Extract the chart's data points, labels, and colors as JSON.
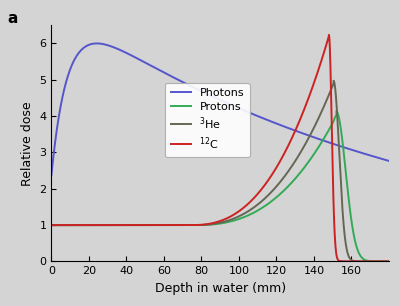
{
  "title_label": "a",
  "xlabel": "Depth in water (mm)",
  "ylabel": "Relative dose",
  "xlim": [
    0,
    180
  ],
  "ylim": [
    0,
    6.5
  ],
  "yticks": [
    0,
    1,
    2,
    3,
    4,
    5,
    6
  ],
  "xticks": [
    0,
    20,
    40,
    60,
    80,
    100,
    120,
    140,
    160
  ],
  "background_color": "#d4d4d4",
  "photon_color": "#5555cc",
  "proton_color": "#33aa55",
  "he_color": "#666655",
  "carbon_color": "#cc2222",
  "range_proton": 152.0,
  "range_he": 150.5,
  "range_carbon": 148.0
}
